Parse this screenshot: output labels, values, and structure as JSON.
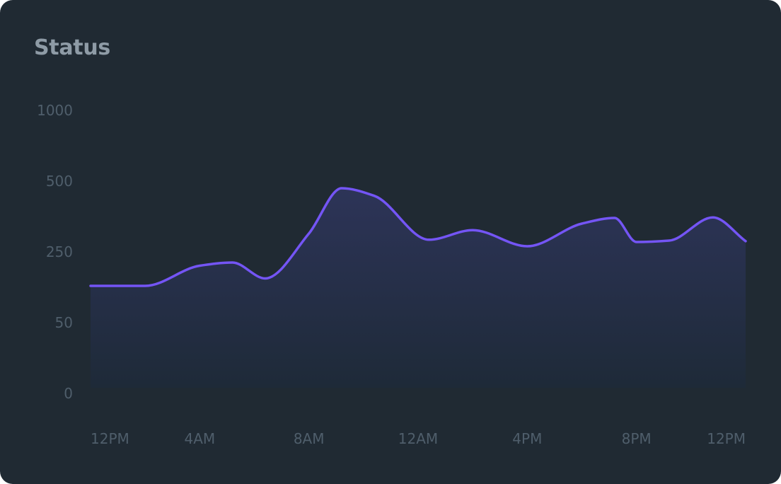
{
  "card": {
    "title": "Status"
  },
  "colors": {
    "background": "#202a33",
    "line": "#7455f5",
    "area_top": "#2d3458",
    "area_bottom": "#1e2a38",
    "title": "#8e9ba6",
    "tick_label": "#4f5e6b"
  },
  "chart_data": {
    "type": "area",
    "title": "Status",
    "xlabel": "",
    "ylabel": "",
    "y_ticks": [
      "1000",
      "500",
      "250",
      "50",
      "0"
    ],
    "x_ticks": [
      "12PM",
      "4AM",
      "8AM",
      "12AM",
      "4PM",
      "8PM",
      "12PM"
    ],
    "grid": false,
    "legend": "none",
    "series": [
      {
        "x": [
          0,
          0.5,
          1,
          1.3,
          1.6,
          2,
          2.3,
          2.6,
          3.1,
          3.5,
          4,
          4.5,
          4.8,
          5,
          5.3,
          5.7,
          6
        ],
        "values": [
          154,
          154,
          211,
          220,
          175,
          315,
          475,
          448,
          293,
          327,
          270,
          350,
          370,
          285,
          290,
          372,
          288
        ]
      }
    ]
  }
}
